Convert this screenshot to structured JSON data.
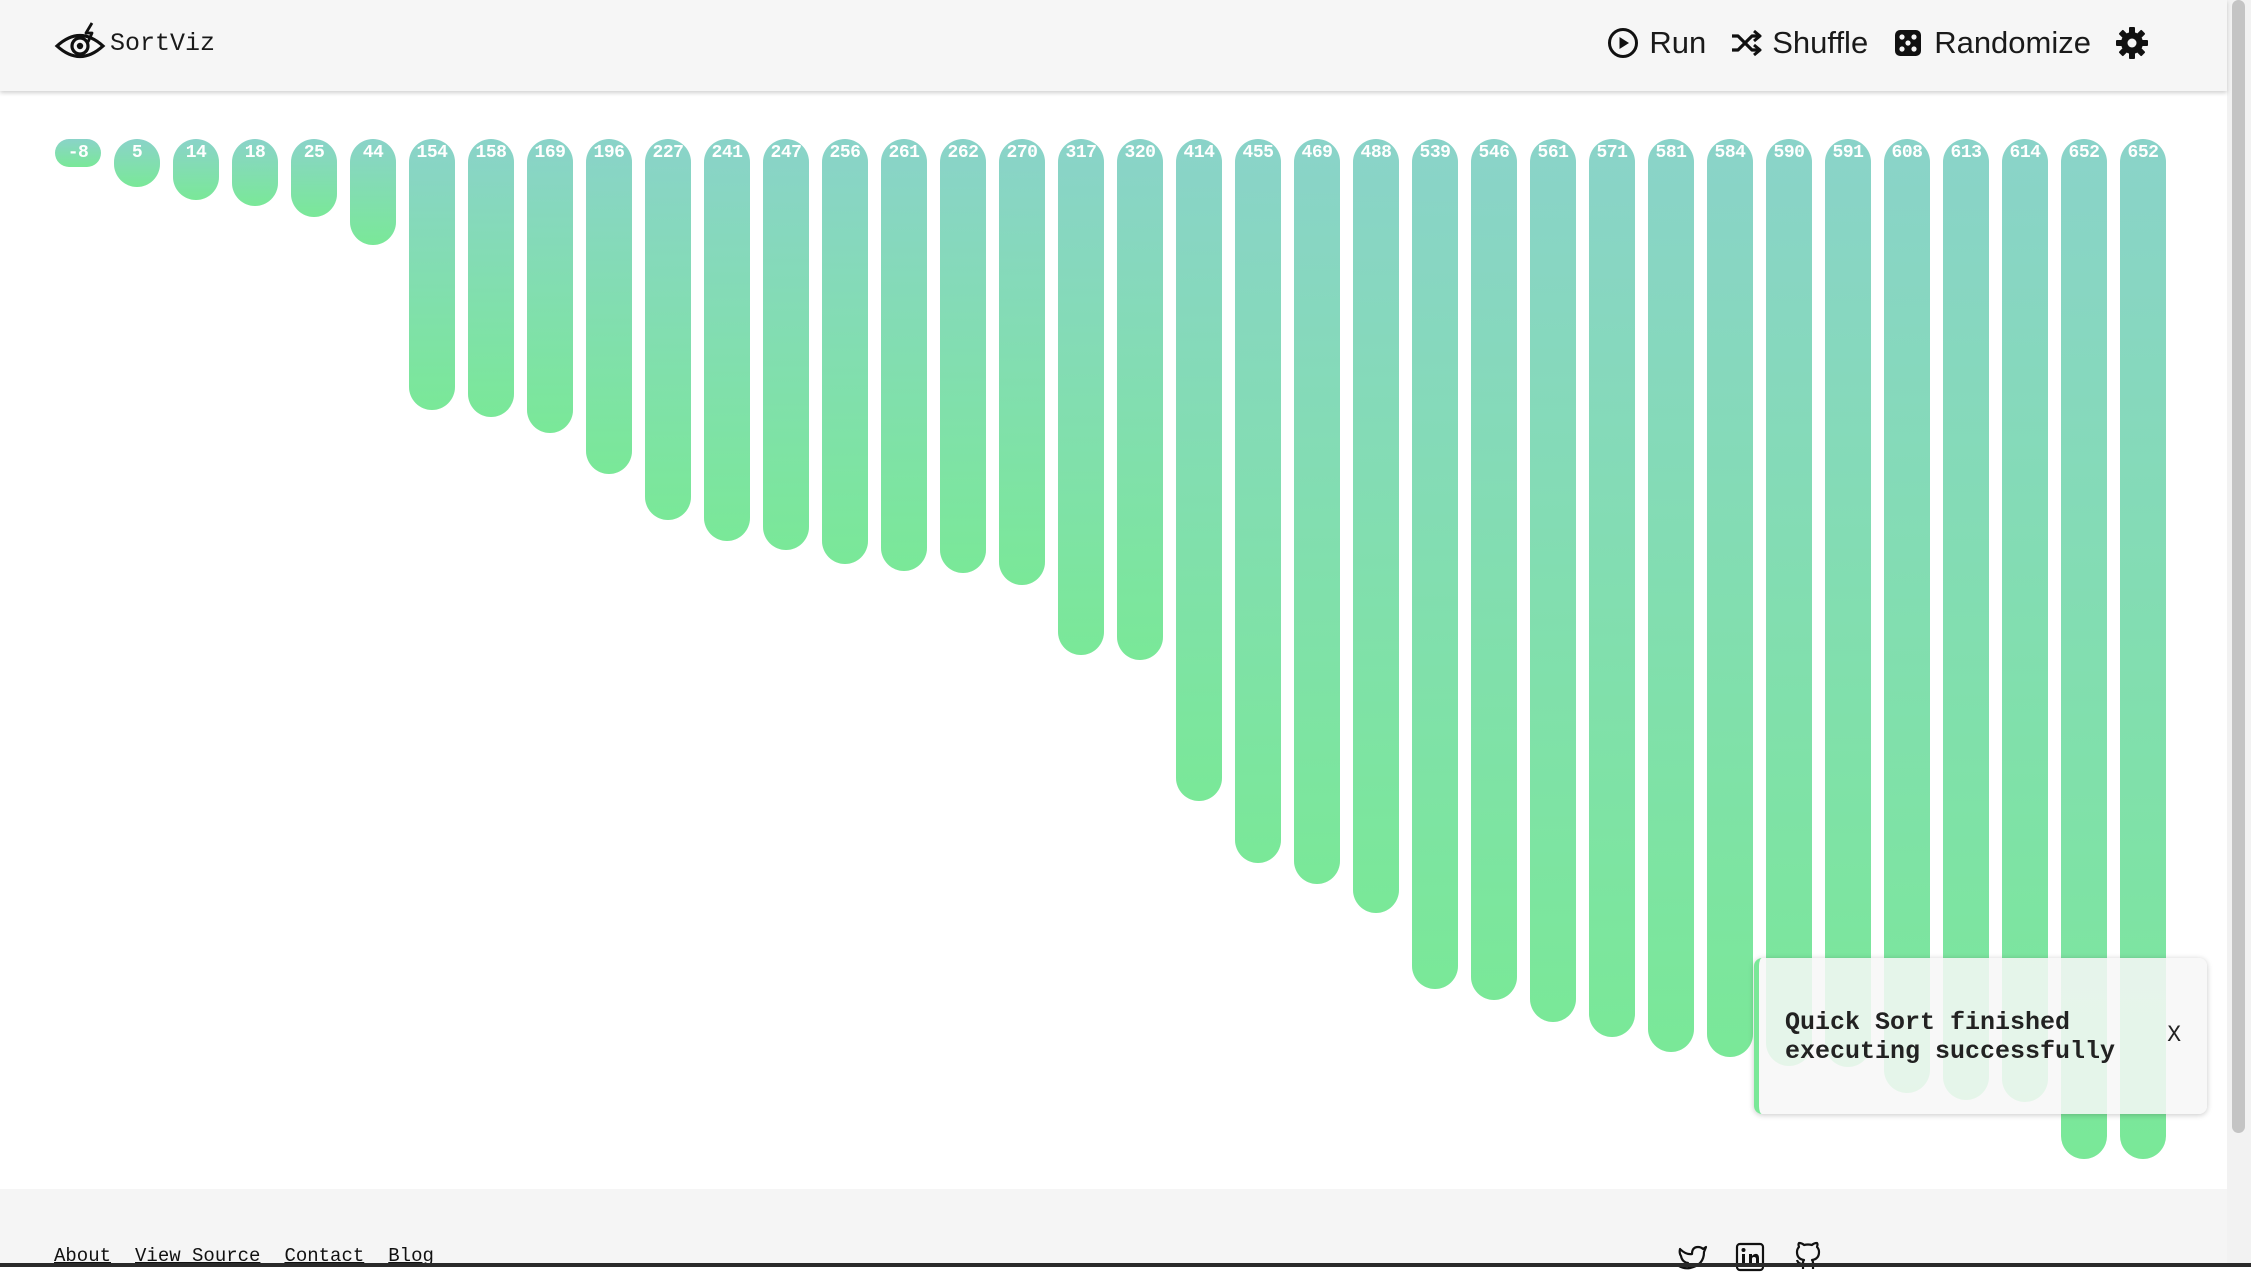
{
  "header": {
    "brand": "SortViz",
    "nav": {
      "run": "Run",
      "shuffle": "Shuffle",
      "randomize": "Randomize"
    }
  },
  "array": {
    "values": [
      -8,
      5,
      14,
      18,
      25,
      44,
      154,
      158,
      169,
      196,
      227,
      241,
      247,
      256,
      261,
      262,
      270,
      317,
      320,
      414,
      455,
      469,
      488,
      539,
      546,
      561,
      571,
      581,
      584,
      590,
      591,
      608,
      613,
      614,
      652,
      652
    ],
    "bar_color_top": "#8ad3c9",
    "bar_color_bottom": "#7ae898"
  },
  "toast": {
    "message": "Quick Sort finished executing successfully",
    "close": "X",
    "accent": "#7ae898"
  },
  "footer": {
    "links": {
      "about": "About",
      "view_source": "View Source",
      "contact": "Contact",
      "blog": "Blog"
    }
  }
}
